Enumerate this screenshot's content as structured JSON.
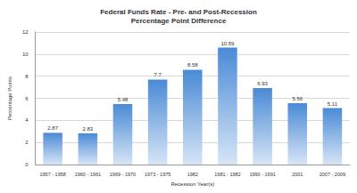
{
  "chart_data": {
    "type": "bar",
    "title": "Federal Funds Rate - Pre- and Post-Recession",
    "subtitle": "Percentage Point Difference",
    "x_label": "Recession Year(s)",
    "y_label": "Percentage Points",
    "categories": [
      "1957 - 1958",
      "1960 - 1961",
      "1969 - 1970",
      "1973 - 1975",
      "1982",
      "1981 - 1982",
      "1990 - 1991",
      "2001",
      "2007 - 2009"
    ],
    "values": [
      2.87,
      2.83,
      5.48,
      7.7,
      8.58,
      10.59,
      6.93,
      5.56,
      5.11
    ],
    "color": "#4a8ad6",
    "ylim": [
      0,
      12
    ],
    "yticks": [
      0,
      2,
      4,
      6,
      8,
      10,
      12
    ],
    "grid": true,
    "data_labels": true
  }
}
